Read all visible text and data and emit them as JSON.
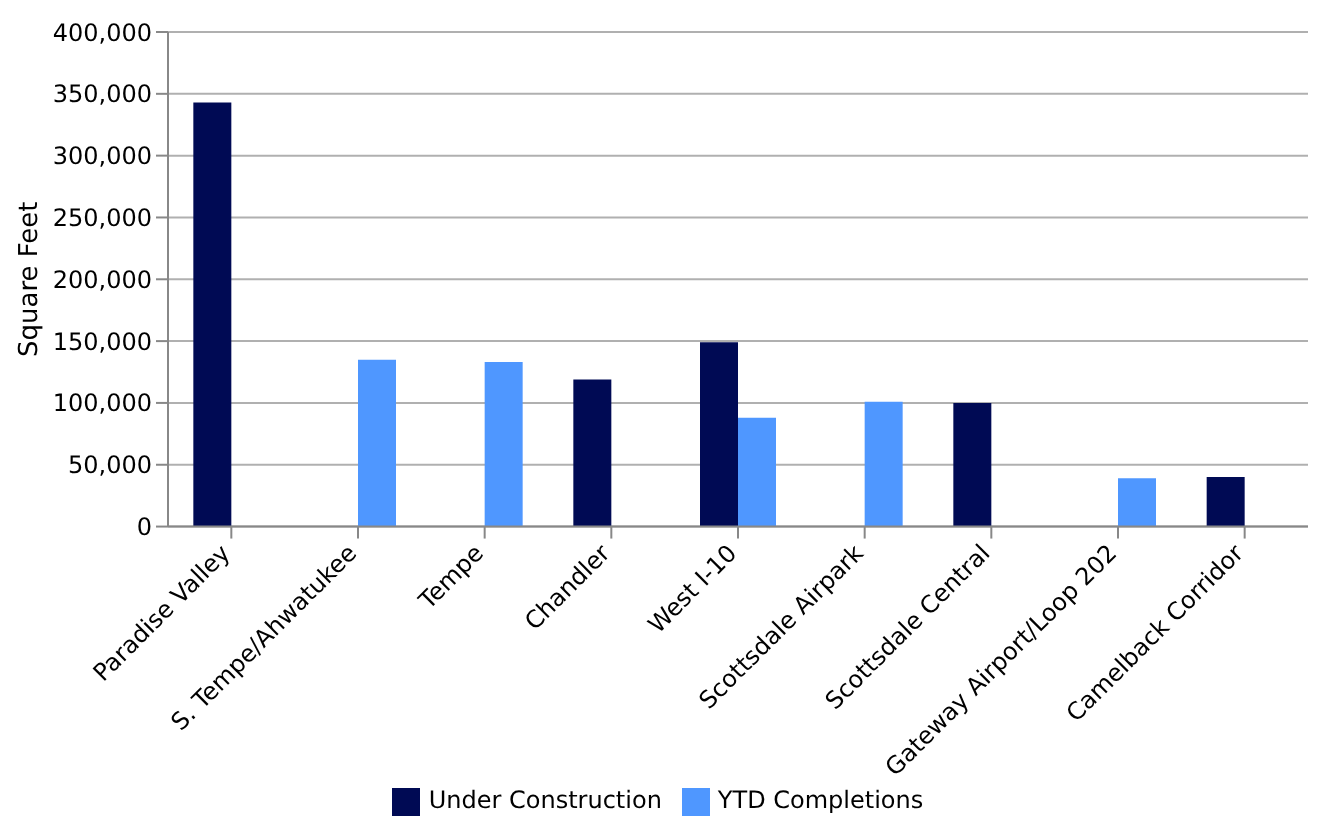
{
  "chart_data": {
    "type": "bar",
    "ylabel": "Square Feet",
    "categories": [
      "Paradise Valley",
      "S. Tempe/Ahwatukee",
      "Tempe",
      "Chandler",
      "West I-10",
      "Scottsdale Airpark",
      "Scottsdale Central",
      "Gateway Airport/Loop 202",
      "Camelback Corridor"
    ],
    "series": [
      {
        "name": "Under Construction",
        "color": "#000a54",
        "values": [
          343000,
          null,
          null,
          119000,
          149000,
          null,
          100000,
          null,
          40000
        ]
      },
      {
        "name": "YTD Completions",
        "color": "#4f97ff",
        "values": [
          null,
          135000,
          133000,
          null,
          88000,
          101000,
          null,
          39000,
          null
        ]
      }
    ],
    "ylim": [
      0,
      400000
    ],
    "yticks": [
      0,
      {
        "value": 50000,
        "label": "50,000"
      },
      {
        "value": 100000,
        "label": "100,000"
      },
      {
        "value": 150000,
        "label": "150,000"
      },
      {
        "value": 200000,
        "label": "200,000"
      },
      {
        "value": 250000,
        "label": "250,000"
      },
      {
        "value": 300000,
        "label": "300,000"
      },
      {
        "value": 350000,
        "label": "350,000"
      },
      {
        "value": 400000,
        "label": "400,000"
      }
    ],
    "grid": "y",
    "legend": "bottom"
  }
}
